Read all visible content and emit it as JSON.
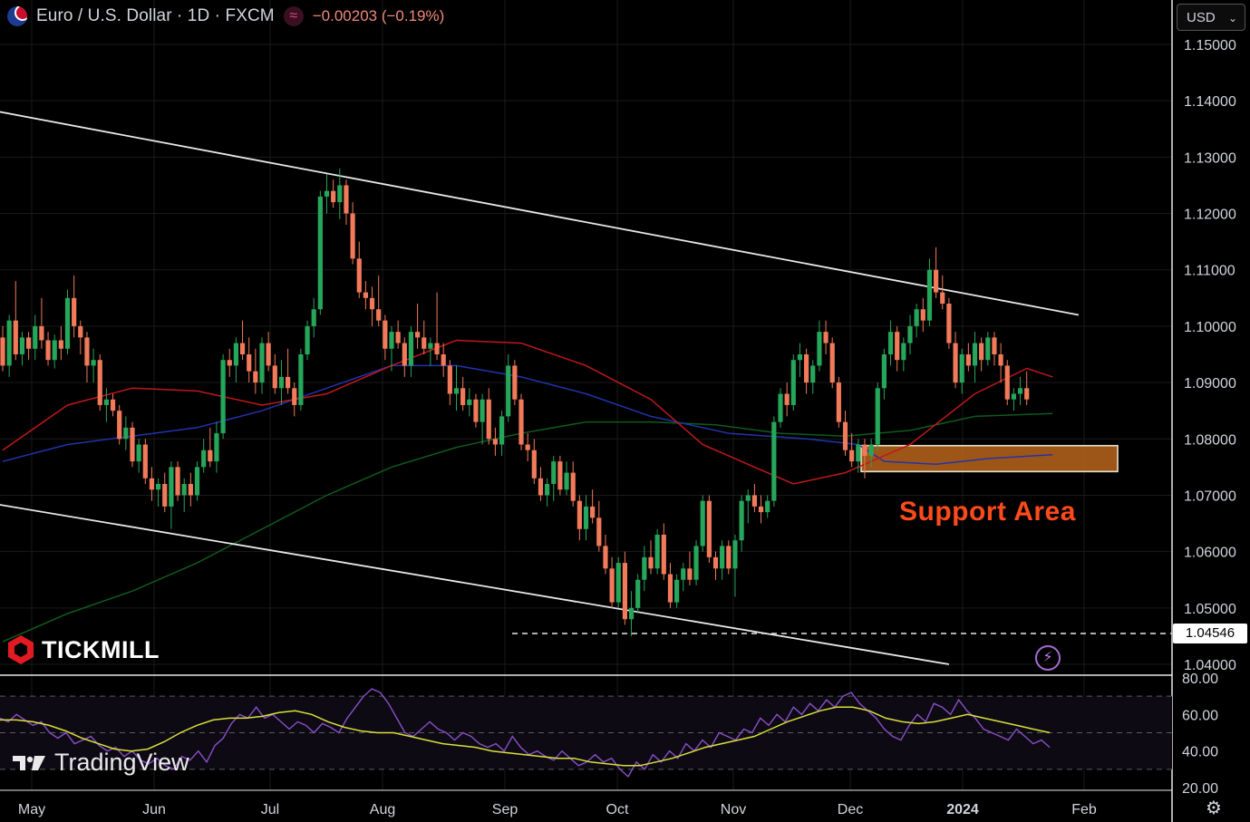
{
  "header": {
    "title": "Euro / U.S. Dollar · 1D · FXCM",
    "change": "−0.00203 (−0.19%)",
    "currency": "USD"
  },
  "brand": {
    "broker": "TICKMILL",
    "platform": "TradingView"
  },
  "colors": {
    "up": "#26a65b",
    "down": "#f07a5a",
    "bg": "#000000",
    "ma_fast": "#c0181a",
    "ma_mid": "#2233aa",
    "ma_slow": "#0f5a1e",
    "rsi": "#8a4fc9",
    "rsi_ma": "#d8e03a",
    "support": "#b8651b"
  },
  "icons": [
    "flag-icon",
    "approx-icon",
    "chevron-down-icon",
    "lightning-icon",
    "gear-icon"
  ],
  "chart_data": {
    "type": "candlestick",
    "title": "Euro / U.S. Dollar · 1D · FXCM",
    "price_axis": {
      "ticks": [
        "1.15000",
        "1.14000",
        "1.13000",
        "1.12000",
        "1.11000",
        "1.10000",
        "1.09000",
        "1.08000",
        "1.07000",
        "1.06000",
        "1.05000",
        "1.04000"
      ],
      "range": [
        1.038,
        1.153
      ]
    },
    "time_axis": {
      "labels": [
        "May",
        "Jun",
        "Jul",
        "Aug",
        "Sep",
        "Oct",
        "Nov",
        "Dec",
        "2024",
        "Feb"
      ]
    },
    "price_marker": "1.04546",
    "support_label": "Support Area",
    "support_zone": [
      1.0742,
      1.0788
    ],
    "candles_ohlc": [
      [
        1.098,
        1.1,
        1.092,
        1.093
      ],
      [
        1.093,
        1.102,
        1.091,
        1.101
      ],
      [
        1.101,
        1.108,
        1.094,
        1.095
      ],
      [
        1.095,
        1.099,
        1.093,
        1.098
      ],
      [
        1.098,
        1.099,
        1.094,
        1.096
      ],
      [
        1.096,
        1.102,
        1.094,
        1.1
      ],
      [
        1.1,
        1.105,
        1.096,
        1.0975
      ],
      [
        1.0975,
        1.099,
        1.093,
        1.094
      ],
      [
        1.094,
        1.0985,
        1.0925,
        1.0975
      ],
      [
        1.0975,
        1.1,
        1.094,
        1.096
      ],
      [
        1.096,
        1.1065,
        1.095,
        1.105
      ],
      [
        1.105,
        1.109,
        1.098,
        1.1
      ],
      [
        1.1,
        1.101,
        1.095,
        1.098
      ],
      [
        1.098,
        1.099,
        1.09,
        1.093
      ],
      [
        1.093,
        1.096,
        1.09,
        1.094
      ],
      [
        1.094,
        1.095,
        1.085,
        1.086
      ],
      [
        1.086,
        1.089,
        1.083,
        1.087
      ],
      [
        1.087,
        1.088,
        1.084,
        1.085
      ],
      [
        1.085,
        1.086,
        1.079,
        1.08
      ],
      [
        1.08,
        1.084,
        1.078,
        1.082
      ],
      [
        1.082,
        1.083,
        1.075,
        1.076
      ],
      [
        1.076,
        1.08,
        1.074,
        1.079
      ],
      [
        1.079,
        1.08,
        1.072,
        1.073
      ],
      [
        1.073,
        1.075,
        1.069,
        1.071
      ],
      [
        1.071,
        1.073,
        1.068,
        1.072
      ],
      [
        1.072,
        1.074,
        1.067,
        1.068
      ],
      [
        1.068,
        1.076,
        1.064,
        1.075
      ],
      [
        1.075,
        1.076,
        1.069,
        1.07
      ],
      [
        1.07,
        1.073,
        1.067,
        1.072
      ],
      [
        1.072,
        1.074,
        1.068,
        1.07
      ],
      [
        1.07,
        1.076,
        1.069,
        1.075
      ],
      [
        1.075,
        1.08,
        1.074,
        1.078
      ],
      [
        1.078,
        1.082,
        1.075,
        1.076
      ],
      [
        1.076,
        1.083,
        1.074,
        1.081
      ],
      [
        1.081,
        1.095,
        1.08,
        1.094
      ],
      [
        1.094,
        1.096,
        1.091,
        1.093
      ],
      [
        1.093,
        1.098,
        1.09,
        1.097
      ],
      [
        1.097,
        1.101,
        1.094,
        1.095
      ],
      [
        1.095,
        1.098,
        1.09,
        1.092
      ],
      [
        1.092,
        1.096,
        1.088,
        1.09
      ],
      [
        1.09,
        1.098,
        1.088,
        1.097
      ],
      [
        1.097,
        1.099,
        1.092,
        1.093
      ],
      [
        1.093,
        1.095,
        1.088,
        1.089
      ],
      [
        1.089,
        1.094,
        1.086,
        1.091
      ],
      [
        1.091,
        1.096,
        1.088,
        1.089
      ],
      [
        1.089,
        1.09,
        1.084,
        1.086
      ],
      [
        1.086,
        1.096,
        1.085,
        1.095
      ],
      [
        1.095,
        1.101,
        1.094,
        1.1
      ],
      [
        1.1,
        1.105,
        1.098,
        1.103
      ],
      [
        1.103,
        1.124,
        1.102,
        1.123
      ],
      [
        1.123,
        1.127,
        1.12,
        1.124
      ],
      [
        1.124,
        1.126,
        1.121,
        1.122
      ],
      [
        1.122,
        1.128,
        1.119,
        1.125
      ],
      [
        1.125,
        1.126,
        1.118,
        1.12
      ],
      [
        1.12,
        1.122,
        1.111,
        1.112
      ],
      [
        1.112,
        1.115,
        1.105,
        1.106
      ],
      [
        1.106,
        1.108,
        1.103,
        1.105
      ],
      [
        1.105,
        1.107,
        1.1,
        1.103
      ],
      [
        1.103,
        1.109,
        1.1,
        1.101
      ],
      [
        1.101,
        1.102,
        1.094,
        1.096
      ],
      [
        1.096,
        1.1,
        1.092,
        1.099
      ],
      [
        1.099,
        1.101,
        1.096,
        1.097
      ],
      [
        1.097,
        1.098,
        1.091,
        1.093
      ],
      [
        1.093,
        1.1,
        1.091,
        1.099
      ],
      [
        1.099,
        1.104,
        1.096,
        1.098
      ],
      [
        1.098,
        1.101,
        1.095,
        1.096
      ],
      [
        1.096,
        1.098,
        1.093,
        1.097
      ],
      [
        1.097,
        1.106,
        1.094,
        1.095
      ],
      [
        1.095,
        1.097,
        1.091,
        1.093
      ],
      [
        1.093,
        1.094,
        1.086,
        1.088
      ],
      [
        1.088,
        1.093,
        1.085,
        1.089
      ],
      [
        1.089,
        1.091,
        1.085,
        1.086
      ],
      [
        1.086,
        1.089,
        1.084,
        1.087
      ],
      [
        1.087,
        1.088,
        1.082,
        1.083
      ],
      [
        1.083,
        1.088,
        1.079,
        1.087
      ],
      [
        1.087,
        1.089,
        1.079,
        1.08
      ],
      [
        1.08,
        1.082,
        1.077,
        1.079
      ],
      [
        1.079,
        1.085,
        1.077,
        1.084
      ],
      [
        1.084,
        1.095,
        1.083,
        1.093
      ],
      [
        1.093,
        1.094,
        1.086,
        1.087
      ],
      [
        1.087,
        1.088,
        1.078,
        1.079
      ],
      [
        1.079,
        1.081,
        1.076,
        1.078
      ],
      [
        1.078,
        1.08,
        1.072,
        1.073
      ],
      [
        1.073,
        1.075,
        1.069,
        1.07
      ],
      [
        1.07,
        1.073,
        1.068,
        1.072
      ],
      [
        1.072,
        1.077,
        1.069,
        1.076
      ],
      [
        1.076,
        1.077,
        1.07,
        1.071
      ],
      [
        1.071,
        1.076,
        1.07,
        1.074
      ],
      [
        1.074,
        1.076,
        1.068,
        1.069
      ],
      [
        1.069,
        1.07,
        1.062,
        1.064
      ],
      [
        1.064,
        1.07,
        1.062,
        1.068
      ],
      [
        1.068,
        1.071,
        1.065,
        1.066
      ],
      [
        1.066,
        1.069,
        1.06,
        1.061
      ],
      [
        1.061,
        1.063,
        1.056,
        1.057
      ],
      [
        1.057,
        1.059,
        1.05,
        1.051
      ],
      [
        1.051,
        1.059,
        1.05,
        1.058
      ],
      [
        1.058,
        1.06,
        1.047,
        1.048
      ],
      [
        1.048,
        1.053,
        1.045,
        1.05
      ],
      [
        1.05,
        1.056,
        1.049,
        1.055
      ],
      [
        1.055,
        1.061,
        1.053,
        1.059
      ],
      [
        1.059,
        1.062,
        1.056,
        1.057
      ],
      [
        1.057,
        1.064,
        1.056,
        1.063
      ],
      [
        1.063,
        1.065,
        1.055,
        1.056
      ],
      [
        1.056,
        1.058,
        1.05,
        1.051
      ],
      [
        1.051,
        1.056,
        1.05,
        1.055
      ],
      [
        1.055,
        1.058,
        1.053,
        1.057
      ],
      [
        1.057,
        1.06,
        1.054,
        1.055
      ],
      [
        1.055,
        1.062,
        1.054,
        1.061
      ],
      [
        1.061,
        1.07,
        1.06,
        1.069
      ],
      [
        1.069,
        1.07,
        1.058,
        1.059
      ],
      [
        1.059,
        1.06,
        1.055,
        1.057
      ],
      [
        1.057,
        1.062,
        1.055,
        1.061
      ],
      [
        1.061,
        1.062,
        1.056,
        1.057
      ],
      [
        1.057,
        1.063,
        1.052,
        1.062
      ],
      [
        1.062,
        1.07,
        1.06,
        1.069
      ],
      [
        1.069,
        1.071,
        1.065,
        1.07
      ],
      [
        1.07,
        1.072,
        1.067,
        1.068
      ],
      [
        1.068,
        1.07,
        1.065,
        1.067
      ],
      [
        1.067,
        1.07,
        1.066,
        1.069
      ],
      [
        1.069,
        1.084,
        1.068,
        1.083
      ],
      [
        1.083,
        1.089,
        1.082,
        1.088
      ],
      [
        1.088,
        1.09,
        1.084,
        1.086
      ],
      [
        1.086,
        1.095,
        1.085,
        1.094
      ],
      [
        1.094,
        1.097,
        1.091,
        1.095
      ],
      [
        1.095,
        1.096,
        1.088,
        1.09
      ],
      [
        1.09,
        1.094,
        1.088,
        1.093
      ],
      [
        1.093,
        1.101,
        1.092,
        1.099
      ],
      [
        1.099,
        1.101,
        1.095,
        1.097
      ],
      [
        1.097,
        1.098,
        1.089,
        1.09
      ],
      [
        1.09,
        1.091,
        1.082,
        1.083
      ],
      [
        1.083,
        1.085,
        1.077,
        1.078
      ],
      [
        1.078,
        1.081,
        1.075,
        1.076
      ],
      [
        1.076,
        1.08,
        1.074,
        1.079
      ],
      [
        1.079,
        1.08,
        1.073,
        1.077
      ],
      [
        1.077,
        1.08,
        1.075,
        1.079
      ],
      [
        1.079,
        1.09,
        1.078,
        1.089
      ],
      [
        1.089,
        1.096,
        1.087,
        1.095
      ],
      [
        1.095,
        1.101,
        1.093,
        1.099
      ],
      [
        1.099,
        1.1,
        1.092,
        1.094
      ],
      [
        1.094,
        1.098,
        1.092,
        1.097
      ],
      [
        1.097,
        1.102,
        1.095,
        1.1
      ],
      [
        1.1,
        1.104,
        1.098,
        1.103
      ],
      [
        1.103,
        1.105,
        1.099,
        1.101
      ],
      [
        1.101,
        1.112,
        1.1,
        1.11
      ],
      [
        1.11,
        1.114,
        1.105,
        1.106
      ],
      [
        1.106,
        1.109,
        1.103,
        1.104
      ],
      [
        1.104,
        1.105,
        1.096,
        1.097
      ],
      [
        1.097,
        1.099,
        1.089,
        1.09
      ],
      [
        1.09,
        1.096,
        1.088,
        1.095
      ],
      [
        1.095,
        1.097,
        1.092,
        1.093
      ],
      [
        1.093,
        1.099,
        1.09,
        1.097
      ],
      [
        1.097,
        1.098,
        1.092,
        1.094
      ],
      [
        1.094,
        1.099,
        1.093,
        1.098
      ],
      [
        1.098,
        1.099,
        1.093,
        1.095
      ],
      [
        1.095,
        1.097,
        1.09,
        1.093
      ],
      [
        1.093,
        1.094,
        1.086,
        1.087
      ],
      [
        1.087,
        1.089,
        1.085,
        1.088
      ],
      [
        1.088,
        1.091,
        1.086,
        1.089
      ],
      [
        1.089,
        1.092,
        1.086,
        1.087
      ]
    ],
    "ma_fast": [
      [
        0,
        1.078
      ],
      [
        10,
        1.086
      ],
      [
        20,
        1.089
      ],
      [
        30,
        1.0885
      ],
      [
        40,
        1.086
      ],
      [
        50,
        1.088
      ],
      [
        60,
        1.093
      ],
      [
        70,
        1.0975
      ],
      [
        80,
        1.097
      ],
      [
        90,
        1.093
      ],
      [
        100,
        1.087
      ],
      [
        108,
        1.079
      ],
      [
        116,
        1.075
      ],
      [
        122,
        1.072
      ],
      [
        130,
        1.074
      ],
      [
        140,
        1.079
      ],
      [
        150,
        1.088
      ],
      [
        158,
        1.0925
      ],
      [
        162,
        1.091
      ]
    ],
    "ma_mid": [
      [
        0,
        1.076
      ],
      [
        10,
        1.079
      ],
      [
        20,
        1.0805
      ],
      [
        30,
        1.082
      ],
      [
        40,
        1.085
      ],
      [
        50,
        1.089
      ],
      [
        60,
        1.093
      ],
      [
        70,
        1.093
      ],
      [
        80,
        1.091
      ],
      [
        90,
        1.088
      ],
      [
        100,
        1.084
      ],
      [
        112,
        1.081
      ],
      [
        124,
        1.08
      ],
      [
        132,
        1.079
      ],
      [
        136,
        1.076
      ],
      [
        144,
        1.0755
      ],
      [
        152,
        1.0765
      ],
      [
        162,
        1.0772
      ]
    ],
    "ma_slow": [
      [
        0,
        1.044
      ],
      [
        10,
        1.049
      ],
      [
        20,
        1.053
      ],
      [
        30,
        1.058
      ],
      [
        40,
        1.064
      ],
      [
        50,
        1.07
      ],
      [
        60,
        1.075
      ],
      [
        70,
        1.0785
      ],
      [
        80,
        1.081
      ],
      [
        90,
        1.083
      ],
      [
        100,
        1.083
      ],
      [
        110,
        1.0825
      ],
      [
        120,
        1.081
      ],
      [
        130,
        1.0805
      ],
      [
        140,
        1.0815
      ],
      [
        150,
        1.084
      ],
      [
        162,
        1.0845
      ]
    ],
    "channel_upper": [
      [
        -4,
        1.1388
      ],
      [
        166,
        1.102
      ]
    ],
    "channel_lower": [
      [
        -4,
        1.069
      ],
      [
        146,
        1.04
      ]
    ],
    "rsi": {
      "ticks": [
        "80.00",
        "60.00",
        "40.00",
        "20.00"
      ],
      "levels": [
        70,
        50,
        30
      ],
      "values": [
        58,
        56,
        60,
        57,
        54,
        56,
        50,
        47,
        50,
        44,
        46,
        48,
        43,
        40,
        42,
        37,
        40,
        35,
        33,
        36,
        32,
        30,
        37,
        35,
        40,
        34,
        43,
        47,
        55,
        60,
        58,
        64,
        58,
        60,
        56,
        52,
        56,
        54,
        50,
        55,
        53,
        50,
        58,
        64,
        70,
        74,
        72,
        66,
        58,
        50,
        48,
        52,
        56,
        52,
        50,
        46,
        50,
        48,
        44,
        42,
        44,
        40,
        48,
        42,
        38,
        40,
        37,
        35,
        40,
        36,
        32,
        34,
        38,
        34,
        36,
        30,
        26,
        34,
        30,
        38,
        34,
        40,
        36,
        44,
        40,
        46,
        42,
        50,
        48,
        46,
        52,
        50,
        58,
        54,
        60,
        56,
        64,
        60,
        66,
        62,
        68,
        64,
        70,
        72,
        66,
        62,
        58,
        52,
        48,
        46,
        54,
        60,
        56,
        66,
        64,
        60,
        68,
        62,
        58,
        52,
        50,
        48,
        46,
        52,
        48,
        44,
        46,
        42
      ],
      "ma": [
        57,
        57,
        56,
        54,
        51,
        47,
        44,
        41,
        40,
        41,
        45,
        50,
        54,
        57,
        58,
        58,
        59,
        61,
        62,
        60,
        56,
        53,
        51,
        50,
        50,
        48,
        46,
        44,
        43,
        42,
        40,
        39,
        38,
        37,
        36,
        36,
        34,
        33,
        32,
        32,
        34,
        36,
        39,
        42,
        44,
        46,
        48,
        52,
        56,
        59,
        62,
        64,
        64,
        62,
        58,
        56,
        55,
        56,
        58,
        60,
        58,
        56,
        54,
        52,
        50
      ]
    }
  }
}
